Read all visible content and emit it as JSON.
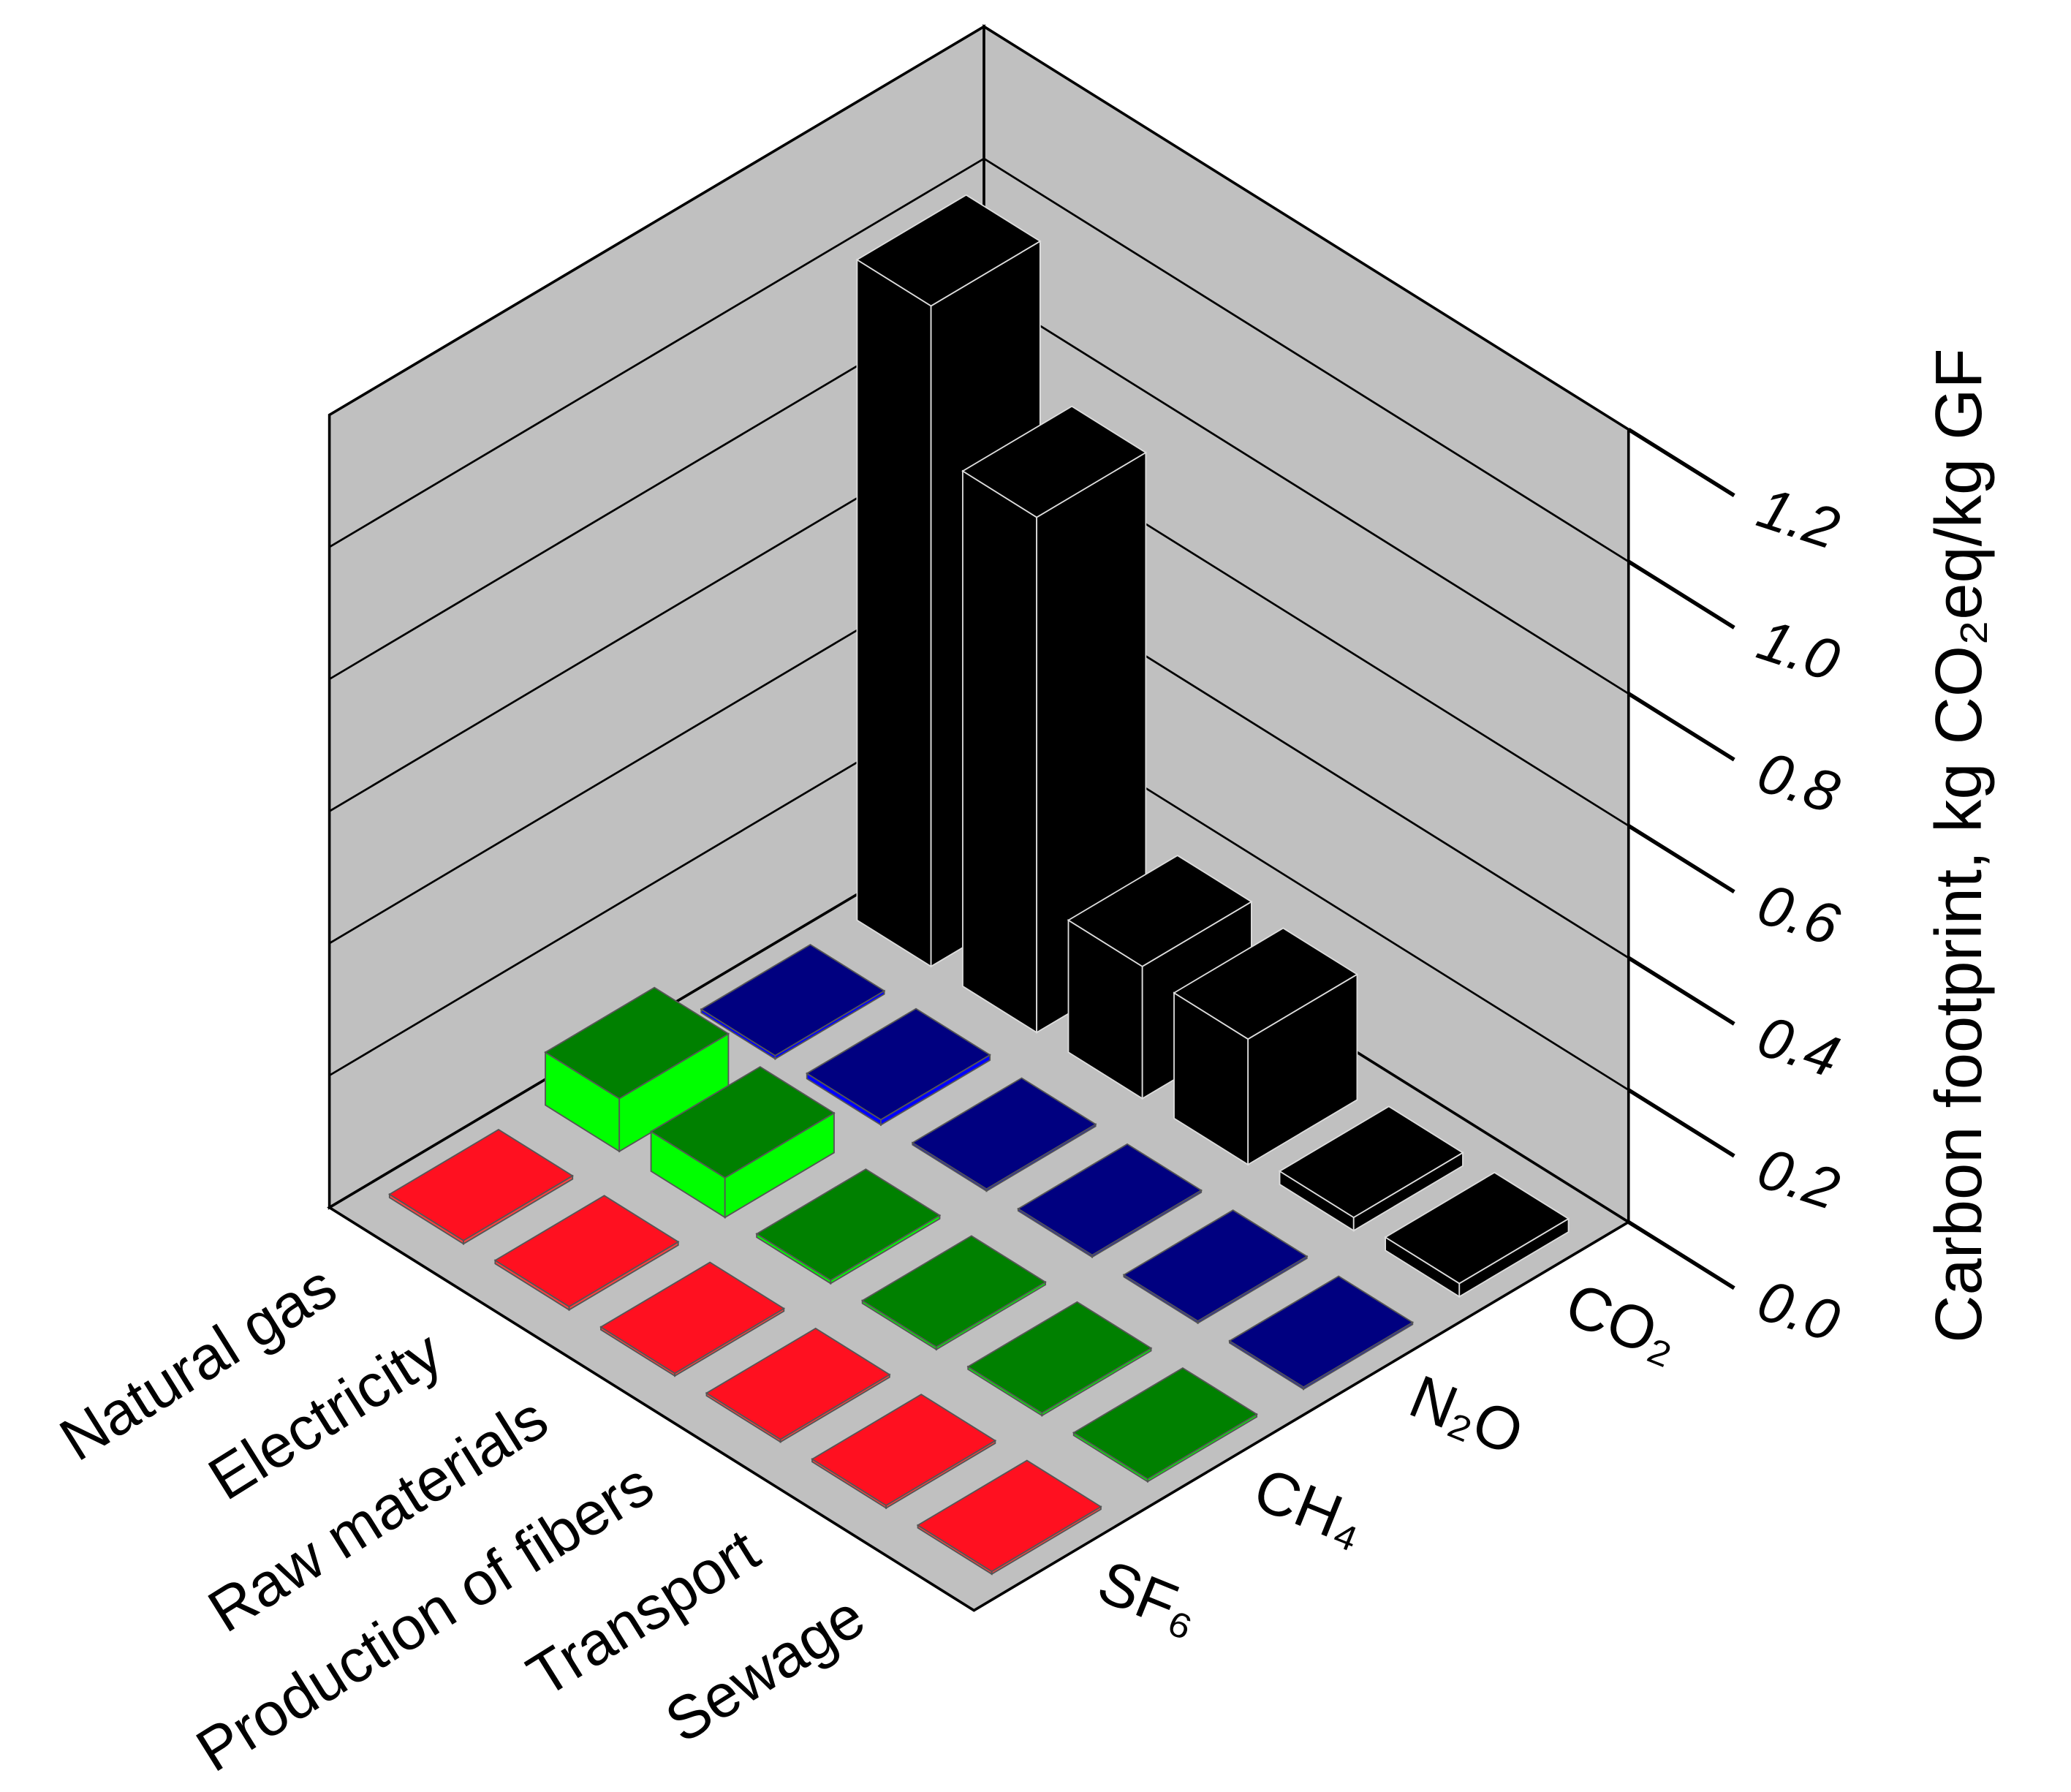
{
  "chart_data": {
    "type": "bar3d",
    "y_label": "Carbon footprint, kg CO₂eq/kg GF",
    "categories": [
      "Natural gas",
      "Electricity",
      "Raw materials",
      "Production of fibers",
      "Transport",
      "Sewage"
    ],
    "series": [
      {
        "name": "CO₂",
        "color": "#000000",
        "side_color": "#000000",
        "values": [
          1.0,
          0.78,
          0.2,
          0.19,
          0.02,
          0.02
        ]
      },
      {
        "name": "N₂O",
        "color": "#000080",
        "side_color": "#0000ff",
        "values": [
          0.005,
          0.008,
          0.003,
          0.003,
          0.003,
          0.003
        ]
      },
      {
        "name": "CH₄",
        "color": "#008000",
        "side_color": "#00ff00",
        "values": [
          0.08,
          0.06,
          0.005,
          0.004,
          0.004,
          0.004
        ]
      },
      {
        "name": "SF₆",
        "color": "#ff1020",
        "side_color": "#ff4040",
        "values": [
          0.005,
          0.005,
          0.004,
          0.004,
          0.004,
          0.004
        ]
      }
    ],
    "ylim": [
      0,
      1.2
    ],
    "yticks": [
      {
        "value": 0,
        "label": "0.0"
      },
      0.2,
      0.4,
      0.6,
      0.8,
      {
        "value": 1,
        "label": "1.0"
      },
      1.2
    ],
    "grid": true,
    "wall_color": "#c0c0c0"
  }
}
